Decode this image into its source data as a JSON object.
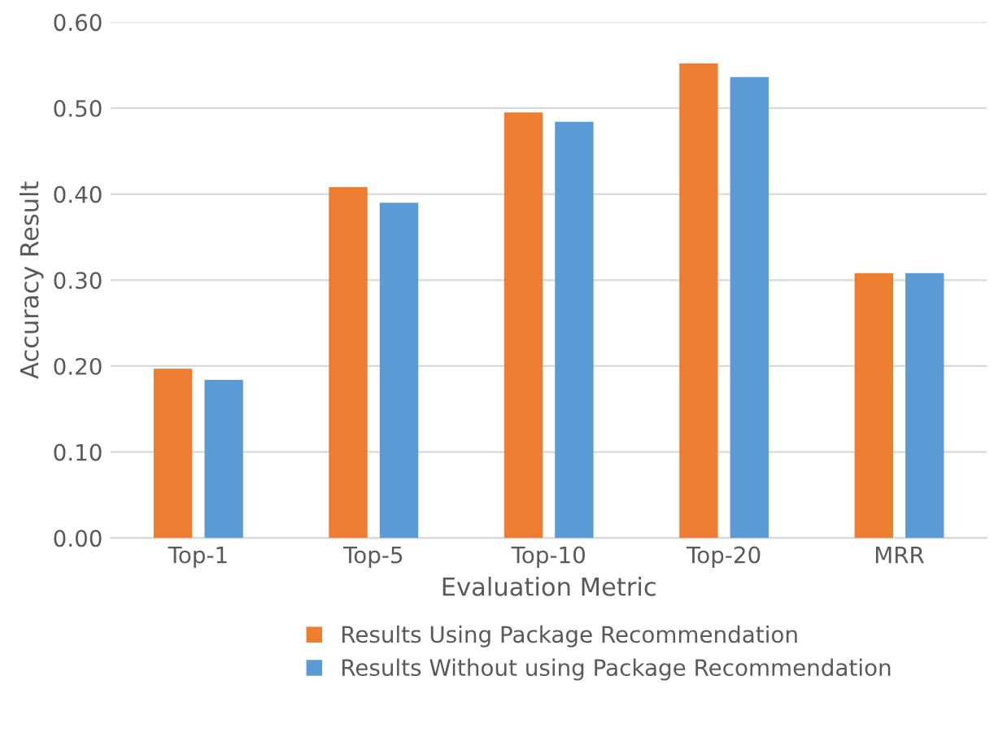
{
  "chart_data": {
    "type": "bar",
    "xlabel": "Evaluation Metric",
    "ylabel": "Accuracy Result",
    "categories": [
      "Top-1",
      "Top-5",
      "Top-10",
      "Top-20",
      "MRR"
    ],
    "series": [
      {
        "name": "Results Using Package Recommendation",
        "color": "#ed7d31",
        "values": [
          0.197,
          0.408,
          0.495,
          0.552,
          0.308
        ]
      },
      {
        "name": "Results Without using Package Recommendation",
        "color": "#5b9bd5",
        "values": [
          0.184,
          0.39,
          0.484,
          0.536,
          0.308
        ]
      }
    ],
    "ylim": [
      0,
      0.6
    ],
    "yticks": [
      {
        "value": 0,
        "label": "0.00"
      },
      {
        "value": 0.1,
        "label": "0.10"
      },
      {
        "value": 0.2,
        "label": "0.20"
      },
      {
        "value": 0.3,
        "label": "0.30"
      },
      {
        "value": 0.4,
        "label": "0.40"
      },
      {
        "value": 0.5,
        "label": "0.50"
      },
      {
        "value": 0.6,
        "label": "0.60"
      }
    ],
    "grid": "y",
    "legend": "bottom"
  }
}
